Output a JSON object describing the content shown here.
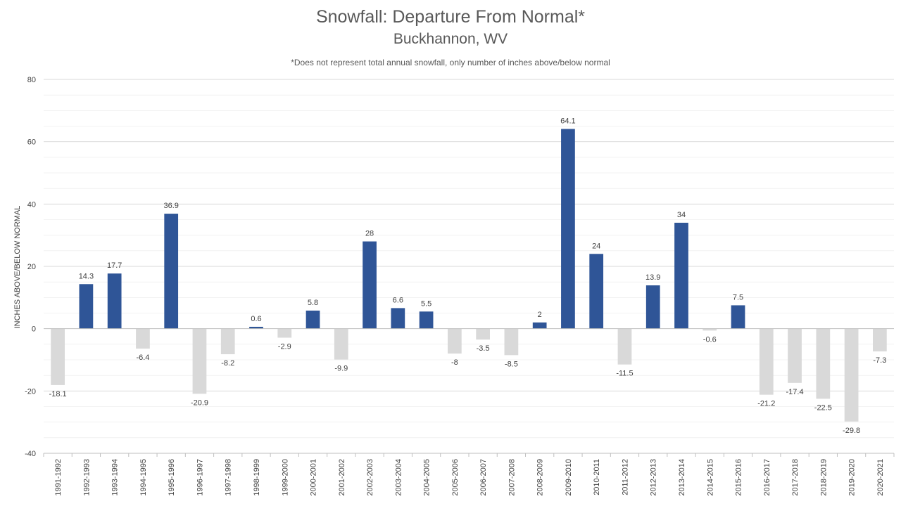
{
  "chart_data": {
    "type": "bar",
    "title": "Snowfall: Departure From Normal*",
    "subtitle": "Buckhannon, WV",
    "note": "*Does not represent  total annual snowfall, only number of inches above/below normal",
    "xlabel": "",
    "ylabel": "INCHES ABOVE/BELOW NORMAL",
    "ylim": [
      -40,
      80
    ],
    "yticks": [
      -40,
      -20,
      0,
      20,
      40,
      60,
      80
    ],
    "grid": true,
    "legend": "none",
    "colors": {
      "positive": "#2f5597",
      "negative": "#d9d9d9",
      "grid": "#d9d9d9",
      "axis": "#bfbfbf",
      "label": "#404040"
    },
    "categories": [
      "1991-1992",
      "1992-1993",
      "1993-1994",
      "1994-1995",
      "1995-1996",
      "1996-1997",
      "1997-1998",
      "1998-1999",
      "1999-2000",
      "2000-2001",
      "2001-2002",
      "2002-2003",
      "2003-2004",
      "2004-2005",
      "2005-2006",
      "2006-2007",
      "2007-2008",
      "2008-2009",
      "2009-2010",
      "2010-2011",
      "2011-2012",
      "2012-2013",
      "2013-2014",
      "2014-2015",
      "2015-2016",
      "2016-2017",
      "2017-2018",
      "2018-2019",
      "2019-2020",
      "2020-2021"
    ],
    "values": [
      -18.1,
      14.3,
      17.7,
      -6.4,
      36.9,
      -20.9,
      -8.2,
      0.6,
      -2.9,
      5.8,
      -9.9,
      28,
      6.6,
      5.5,
      -8,
      -3.5,
      -8.5,
      2,
      64.1,
      24,
      -11.5,
      13.9,
      34,
      -0.6,
      7.5,
      -21.2,
      -17.4,
      -22.5,
      -29.8,
      -7.3
    ]
  }
}
